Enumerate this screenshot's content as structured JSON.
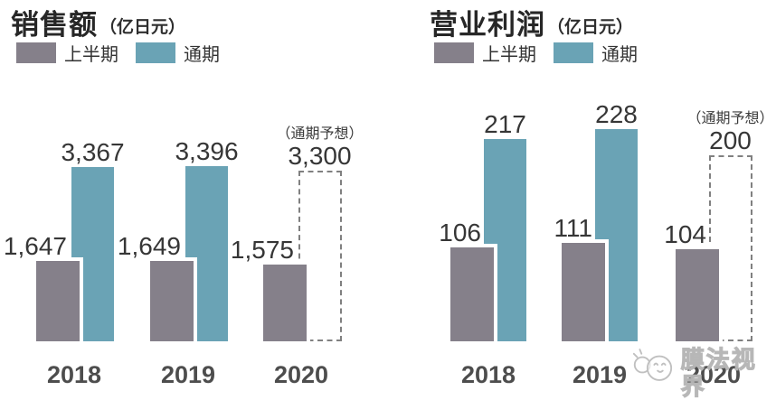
{
  "page": {
    "background": "#ffffff"
  },
  "colors": {
    "first_half": "#85808A",
    "full_year": "#6AA3B5",
    "forecast_border": "#808080",
    "value_text": "#363636",
    "year_text": "#4d4d4d"
  },
  "watermark": {
    "text": "膜法视界"
  },
  "chart_data": [
    {
      "type": "bar",
      "title": "销售额",
      "unit_label": "（亿日元）",
      "legend_position": "top-left",
      "grid": false,
      "categories": [
        "2018",
        "2019",
        "2020"
      ],
      "series": [
        {
          "name": "上半期",
          "color": "#85808A",
          "values": [
            1647,
            1649,
            1575
          ],
          "display": [
            "1,647",
            "1,649",
            "1,575"
          ]
        },
        {
          "name": "通期",
          "color": "#6AA3B5",
          "values": [
            3367,
            3396,
            null
          ],
          "display": [
            "3,367",
            "3,396",
            null
          ]
        }
      ],
      "forecast": {
        "note": "（通期予想）",
        "value": 3300,
        "display": "3,300",
        "category": "2020",
        "style": "dashed-outline"
      },
      "ylim": [
        0,
        3500
      ]
    },
    {
      "type": "bar",
      "title": "营业利润",
      "unit_label": "（亿日元）",
      "legend_position": "top-left",
      "grid": false,
      "categories": [
        "2018",
        "2019",
        "2020"
      ],
      "series": [
        {
          "name": "上半期",
          "color": "#85808A",
          "values": [
            106,
            111,
            104
          ],
          "display": [
            "106",
            "111",
            "104"
          ]
        },
        {
          "name": "通期",
          "color": "#6AA3B5",
          "values": [
            217,
            228,
            null
          ],
          "display": [
            "217",
            "228",
            null
          ]
        }
      ],
      "forecast": {
        "note": "（通期予想）",
        "value": 200,
        "display": "200",
        "category": "2020",
        "style": "dashed-outline"
      },
      "ylim": [
        0,
        240
      ]
    }
  ]
}
